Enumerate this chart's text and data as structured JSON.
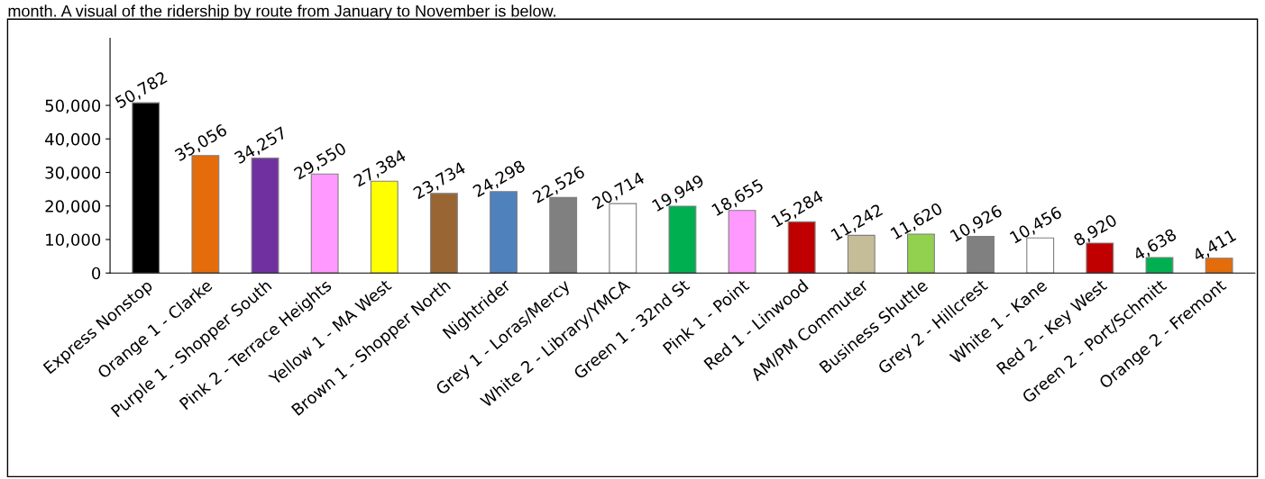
{
  "chart_data": {
    "type": "bar",
    "annotations": [
      "month. A visual of the ridership by route from January to November is below."
    ],
    "categories": [
      "Express Nonstop",
      "Orange 1 - Clarke",
      "Purple 1 - Shopper South",
      "Pink 2 - Terrace Heights",
      "Yellow 1 - MA West",
      "Brown 1 - Shopper North",
      "Nightrider",
      "Grey 1 - Loras/Mercy",
      "White 2 - Library/YMCA",
      "Green 1 - 32nd St",
      "Pink 1 - Point",
      "Red 1 - Linwood",
      "AM/PM Commuter",
      "Business Shuttle",
      "Grey 2 - Hillcrest",
      "White 1 - Kane",
      "Red 2 - Key West",
      "Green 2 - Port/Schmitt",
      "Orange 2 - Fremont"
    ],
    "values": [
      50782,
      35056,
      34257,
      29550,
      27384,
      23734,
      24298,
      22526,
      20714,
      19949,
      18655,
      15284,
      11242,
      11620,
      10926,
      10456,
      8920,
      4638,
      4411
    ],
    "colors": [
      "#000000",
      "#e46c0a",
      "#7030a0",
      "#ff99ff",
      "#ffff00",
      "#996633",
      "#4f81bd",
      "#808080",
      "#ffffff",
      "#00b050",
      "#ff99ff",
      "#c00000",
      "#c4bd97",
      "#92d050",
      "#808080",
      "#ffffff",
      "#c00000",
      "#00b050",
      "#e46c0a"
    ],
    "ylim": [
      0,
      70000
    ],
    "yticks": [
      {
        "value": 0,
        "label": "0"
      },
      {
        "value": 10000,
        "label": "10,000"
      },
      {
        "value": 20000,
        "label": "20,000"
      },
      {
        "value": 30000,
        "label": "30,000"
      },
      {
        "value": 40000,
        "label": "40,000"
      },
      {
        "value": 50000,
        "label": "50,000"
      }
    ],
    "value_labels": [
      "50,782",
      "35,056",
      "34,257",
      "29,550",
      "27,384",
      "23,734",
      "24,298",
      "22,526",
      "20,714",
      "19,949",
      "18,655",
      "15,284",
      "11,242",
      "11,620",
      "10,926",
      "10,456",
      "8,920",
      "4,638",
      "4,411"
    ],
    "grid": false,
    "legend": false
  }
}
